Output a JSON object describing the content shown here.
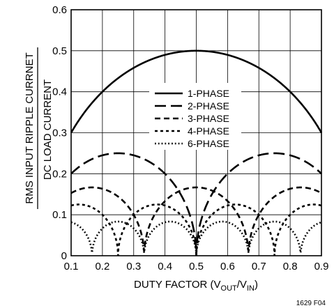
{
  "chart_data": {
    "type": "line",
    "xlabel_parts": {
      "prefix": "DUTY FACTOR (V",
      "sub1": "OUT",
      "mid": "/V",
      "sub2": "IN",
      "suffix": ")"
    },
    "ylabel_numerator": "RMS INPUT RIPPLE CURRNET",
    "ylabel_denominator": "DC LOAD CURRENT",
    "figure_code": "1629 F04",
    "xlim": [
      0.1,
      0.9
    ],
    "ylim": [
      0,
      0.6
    ],
    "x_ticks": [
      "0.1",
      "0.2",
      "0.3",
      "0.4",
      "0.5",
      "0.6",
      "0.7",
      "0.8",
      "0.9"
    ],
    "y_ticks": [
      "0",
      "0.1",
      "0.2",
      "0.3",
      "0.4",
      "0.5",
      "0.6"
    ],
    "grid": true,
    "legend_position": "center",
    "series": [
      {
        "name": "1-PHASE",
        "phases": 1,
        "dash": "",
        "x": [
          0.1,
          0.2,
          0.3,
          0.4,
          0.5,
          0.6,
          0.7,
          0.8,
          0.9
        ],
        "y": [
          0.3,
          0.4,
          0.458,
          0.49,
          0.5,
          0.49,
          0.458,
          0.4,
          0.3
        ]
      },
      {
        "name": "2-PHASE",
        "phases": 2,
        "dash": "16,7",
        "x": [
          0.1,
          0.25,
          0.4,
          0.5,
          0.6,
          0.75,
          0.9
        ],
        "y": [
          0.2,
          0.25,
          0.2,
          0.0,
          0.2,
          0.25,
          0.2
        ]
      },
      {
        "name": "3-PHASE",
        "phases": 3,
        "dash": "8,5",
        "x": [
          0.1,
          0.167,
          0.2,
          0.333,
          0.4,
          0.5,
          0.6,
          0.667,
          0.8,
          0.833,
          0.9
        ],
        "y": [
          0.157,
          0.167,
          0.149,
          0.0,
          0.149,
          0.167,
          0.149,
          0.0,
          0.149,
          0.167,
          0.157
        ]
      },
      {
        "name": "4-PHASE",
        "phases": 4,
        "dash": "4,4",
        "x": [
          0.1,
          0.125,
          0.25,
          0.375,
          0.5,
          0.625,
          0.75,
          0.875,
          0.9
        ],
        "y": [
          0.122,
          0.125,
          0.0,
          0.125,
          0.0,
          0.125,
          0.0,
          0.125,
          0.122
        ]
      },
      {
        "name": "6-PHASE",
        "phases": 6,
        "dash": "1.8,3",
        "x": [
          0.1,
          0.167,
          0.25,
          0.333,
          0.417,
          0.5,
          0.583,
          0.667,
          0.75,
          0.833,
          0.9
        ],
        "y": [
          0.075,
          0.0,
          0.083,
          0.0,
          0.083,
          0.0,
          0.083,
          0.0,
          0.083,
          0.0,
          0.075
        ]
      }
    ]
  }
}
